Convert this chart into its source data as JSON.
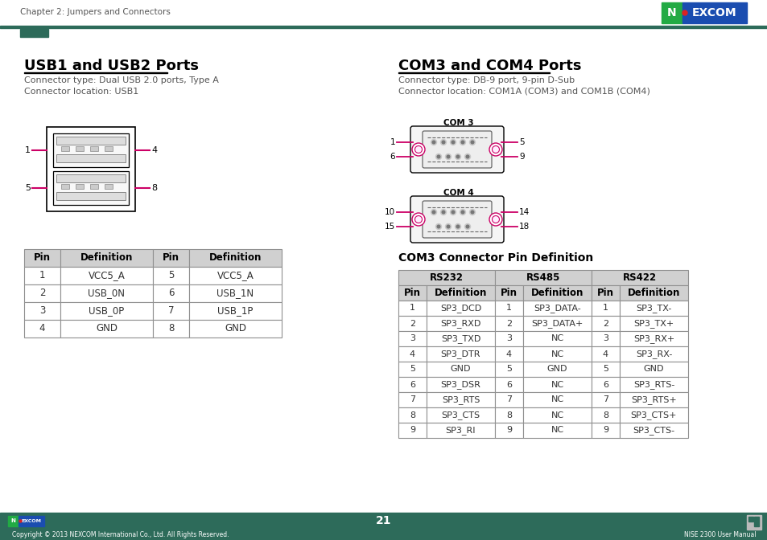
{
  "page_title": "Chapter 2: Jumpers and Connectors",
  "page_number": "21",
  "footer_text": "Copyright © 2013 NEXCOM International Co., Ltd. All Rights Reserved.",
  "footer_right": "NISE 2300 User Manual",
  "accent_color": "#cc0066",
  "bg_color": "#ffffff",
  "section1_title": "USB1 and USB2 Ports",
  "section1_sub1": "Connector type: Dual USB 2.0 ports, Type A",
  "section1_sub2": "Connector location: USB1",
  "section2_title": "COM3 and COM4 Ports",
  "section2_sub1": "Connector type: DB-9 port, 9-pin D-Sub",
  "section2_sub2": "Connector location: COM1A (COM3) and COM1B (COM4)",
  "usb_table_headers": [
    "Pin",
    "Definition",
    "Pin",
    "Definition"
  ],
  "usb_table_data": [
    [
      "1",
      "VCC5_A",
      "5",
      "VCC5_A"
    ],
    [
      "2",
      "USB_0N",
      "6",
      "USB_1N"
    ],
    [
      "3",
      "USB_0P",
      "7",
      "USB_1P"
    ],
    [
      "4",
      "GND",
      "8",
      "GND"
    ]
  ],
  "com3_section_title": "COM3 Connector Pin Definition",
  "com_table_sub_headers": [
    "Pin",
    "Definition",
    "Pin",
    "Definition",
    "Pin",
    "Definition"
  ],
  "com_table_data": [
    [
      "1",
      "SP3_DCD",
      "1",
      "SP3_DATA-",
      "1",
      "SP3_TX-"
    ],
    [
      "2",
      "SP3_RXD",
      "2",
      "SP3_DATA+",
      "2",
      "SP3_TX+"
    ],
    [
      "3",
      "SP3_TXD",
      "3",
      "NC",
      "3",
      "SP3_RX+"
    ],
    [
      "4",
      "SP3_DTR",
      "4",
      "NC",
      "4",
      "SP3_RX-"
    ],
    [
      "5",
      "GND",
      "5",
      "GND",
      "5",
      "GND"
    ],
    [
      "6",
      "SP3_DSR",
      "6",
      "NC",
      "6",
      "SP3_RTS-"
    ],
    [
      "7",
      "SP3_RTS",
      "7",
      "NC",
      "7",
      "SP3_RTS+"
    ],
    [
      "8",
      "SP3_CTS",
      "8",
      "NC",
      "8",
      "SP3_CTS+"
    ],
    [
      "9",
      "SP3_RI",
      "9",
      "NC",
      "9",
      "SP3_CTS-"
    ]
  ],
  "dark_bar_color": "#2d6b5a",
  "table_header_bg": "#d0d0d0"
}
